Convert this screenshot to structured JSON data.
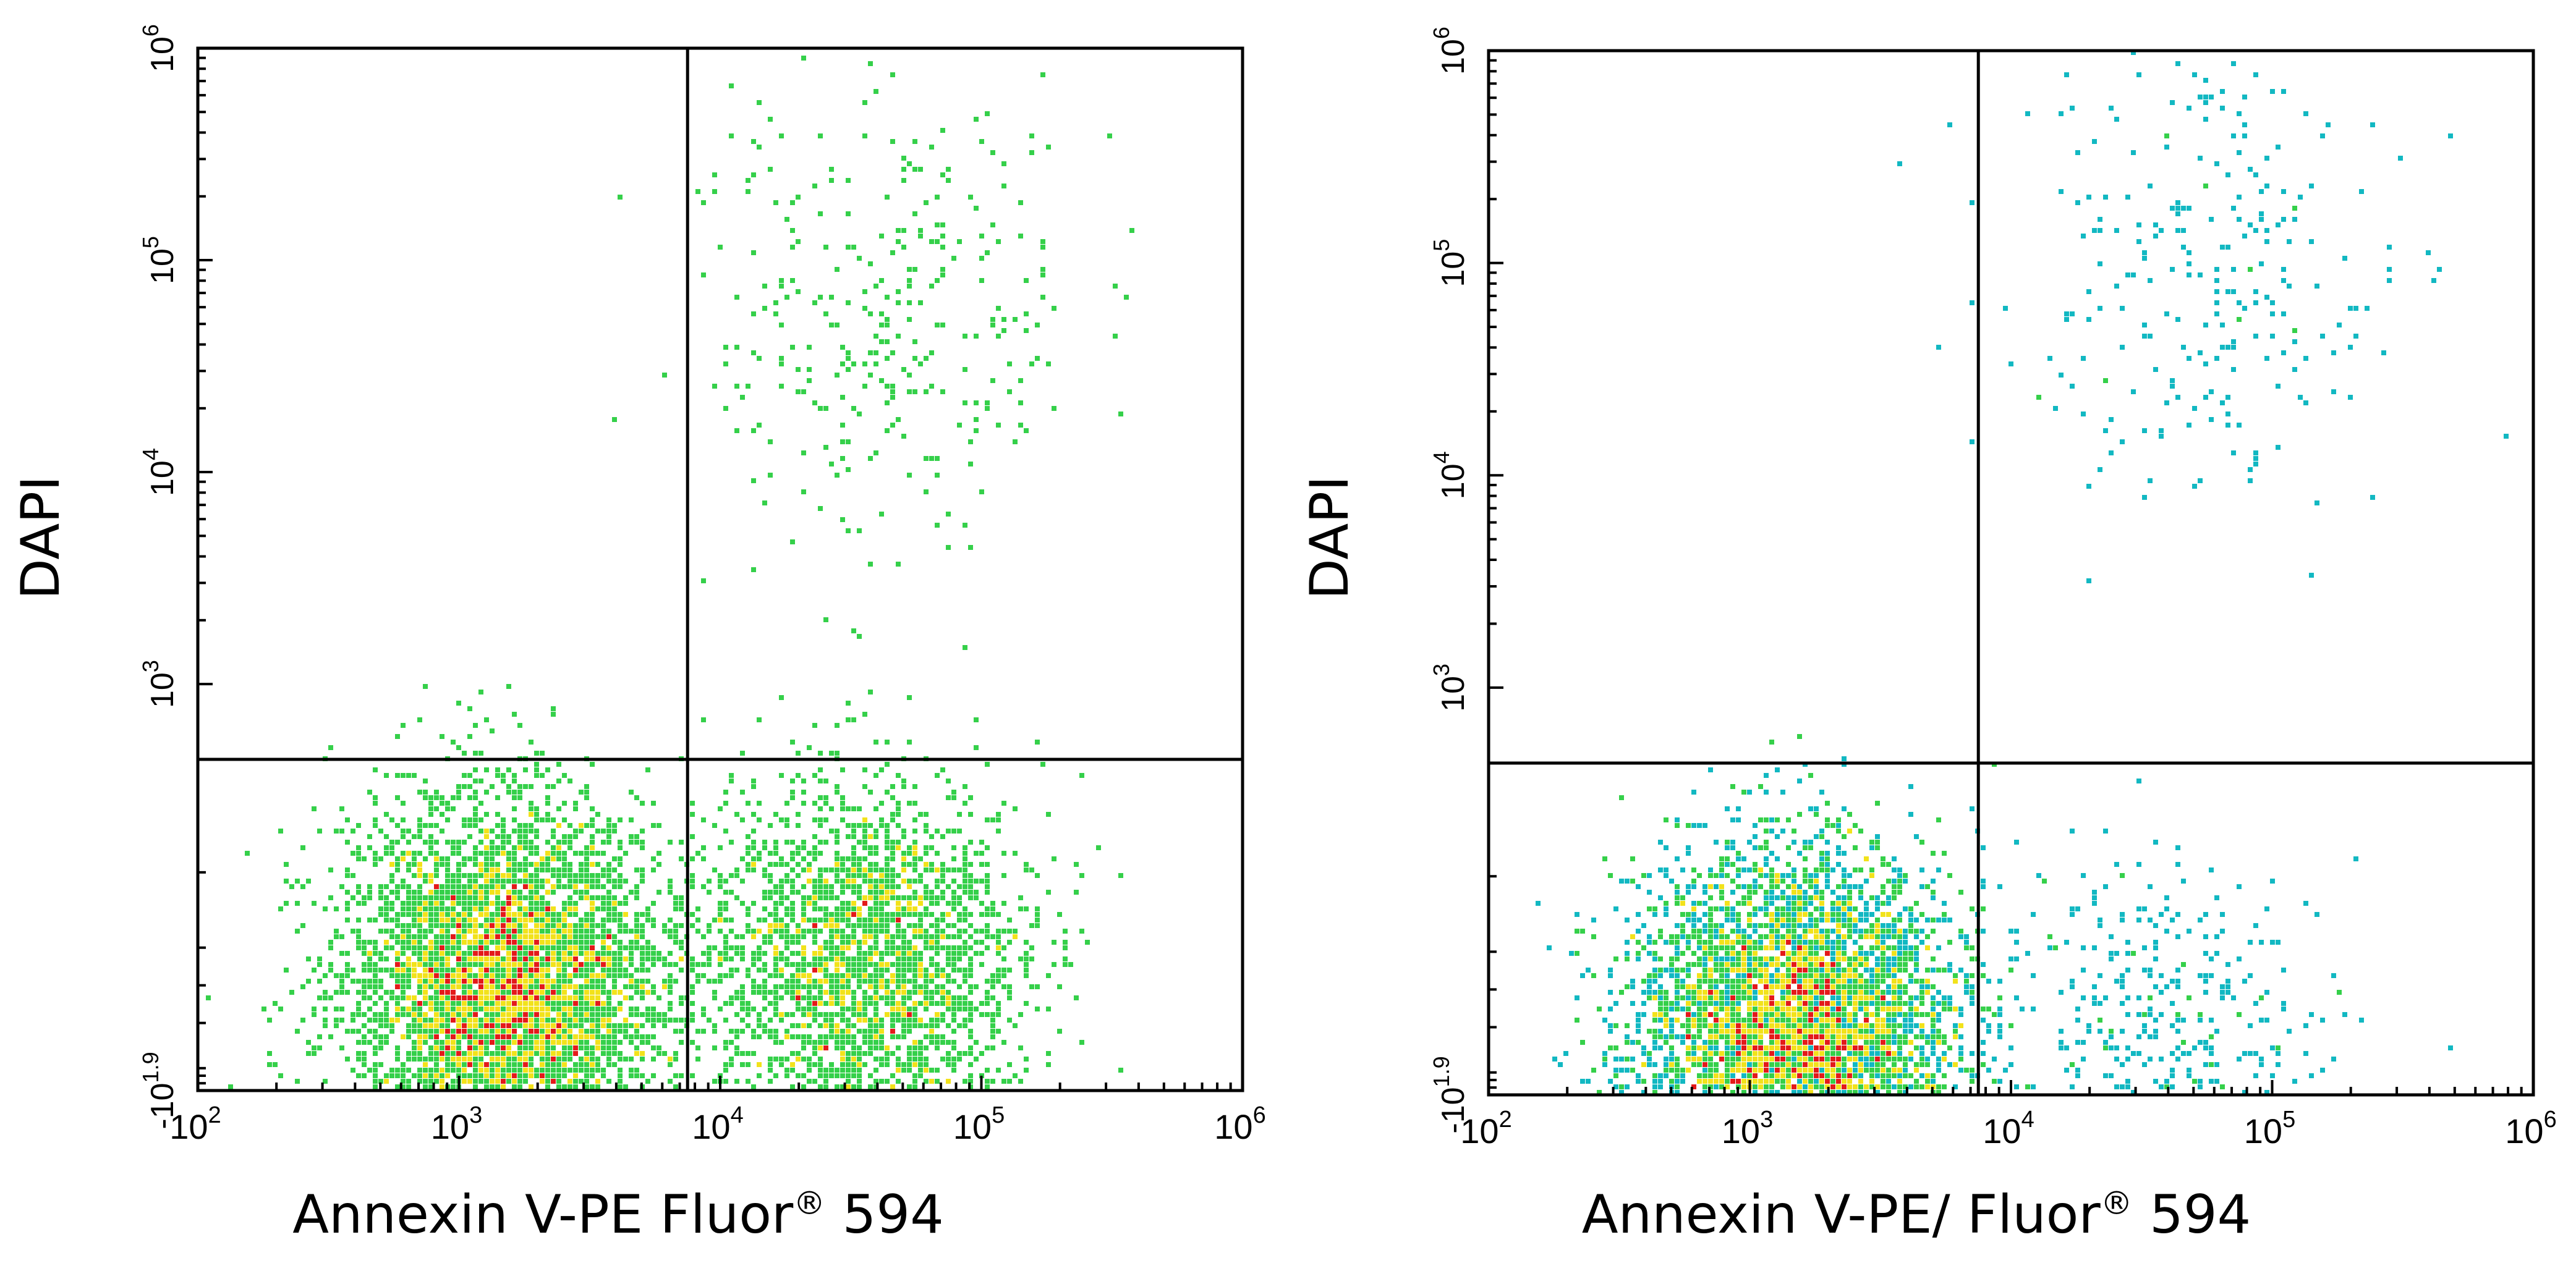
{
  "chart_data": [
    {
      "type": "scatter",
      "xlabel_main": "Annexin V-PE Fluor",
      "xlabel_sup": "®",
      "xlabel_tail": " 594",
      "ylabel": "DAPI",
      "x_scale": "log",
      "xlim": [
        100,
        1000000
      ],
      "y_scale": "biexponential",
      "ylim": [
        -79.4,
        1000000
      ],
      "x_ticks": [
        {
          "value": 100,
          "base": "10",
          "exp": "2"
        },
        {
          "value": 1000,
          "base": "10",
          "exp": "3"
        },
        {
          "value": 10000,
          "base": "10",
          "exp": "4"
        },
        {
          "value": 100000,
          "base": "10",
          "exp": "5"
        },
        {
          "value": 1000000,
          "base": "10",
          "exp": "6"
        }
      ],
      "y_ticks": [
        {
          "value": -79.4,
          "base": "-10",
          "exp": "1.9"
        },
        {
          "value": 1000,
          "base": "10",
          "exp": "3"
        },
        {
          "value": 10000,
          "base": "10",
          "exp": "4"
        },
        {
          "value": 100000,
          "base": "10",
          "exp": "5"
        },
        {
          "value": 1000000,
          "base": "10",
          "exp": "6"
        }
      ],
      "quadrant_gate": {
        "x": 7500,
        "y": 800
      },
      "grid": false,
      "legend": "none",
      "populations": [
        {
          "name": "",
          "center": {
            "x": 1500,
            "y": 200
          },
          "approx_events": 5200
        },
        {
          "name": "",
          "center": {
            "x": 35000,
            "y": 250
          },
          "approx_events": 2600
        },
        {
          "name": "",
          "center": {
            "x": 45000,
            "y": 60000
          },
          "approx_events": 320
        }
      ],
      "colors": {
        "low": "#1f1fd6",
        "mid": "#12b8c2",
        "mid2": "#35d04a",
        "high": "#f2e21b",
        "peak": "#e31a1a"
      }
    },
    {
      "type": "scatter",
      "xlabel_main": "Annexin V-PE/ Fluor",
      "xlabel_sup": "®",
      "xlabel_tail": " 594",
      "ylabel": "DAPI",
      "x_scale": "log",
      "xlim": [
        100,
        1000000
      ],
      "y_scale": "biexponential",
      "ylim": [
        -79.4,
        1000000
      ],
      "x_ticks": [
        {
          "value": 100,
          "base": "10",
          "exp": "2"
        },
        {
          "value": 1000,
          "base": "10",
          "exp": "3"
        },
        {
          "value": 10000,
          "base": "10",
          "exp": "4"
        },
        {
          "value": 100000,
          "base": "10",
          "exp": "5"
        },
        {
          "value": 1000000,
          "base": "10",
          "exp": "6"
        }
      ],
      "y_ticks": [
        {
          "value": -79.4,
          "base": "-10",
          "exp": "1.9"
        },
        {
          "value": 1000,
          "base": "10",
          "exp": "3"
        },
        {
          "value": 10000,
          "base": "10",
          "exp": "4"
        },
        {
          "value": 100000,
          "base": "10",
          "exp": "5"
        },
        {
          "value": 1000000,
          "base": "10",
          "exp": "6"
        }
      ],
      "quadrant_gate": {
        "x": 7500,
        "y": 800
      },
      "grid": false,
      "legend": "none",
      "populations": [
        {
          "name": "",
          "center": {
            "x": 1500,
            "y": 80
          },
          "approx_events": 7200
        },
        {
          "name": "",
          "center": {
            "x": 40000,
            "y": 60
          },
          "approx_events": 420
        },
        {
          "name": "",
          "center": {
            "x": 50000,
            "y": 80000
          },
          "approx_events": 260
        }
      ],
      "colors": {
        "low": "#1f1fd6",
        "mid": "#12b8c2",
        "mid2": "#35d04a",
        "high": "#f2e21b",
        "peak": "#e31a1a"
      }
    }
  ]
}
